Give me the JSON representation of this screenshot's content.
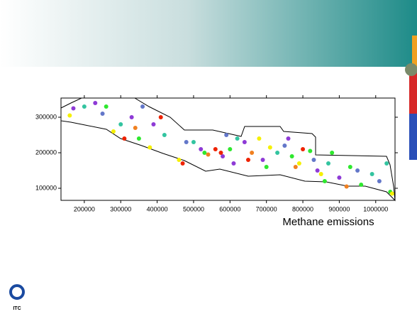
{
  "chart_data": {
    "type": "scatter",
    "caption": "Methane emissions",
    "logo_text": "ITC",
    "xlim": [
      136000,
      1053000
    ],
    "ylim": [
      66000,
      354000
    ],
    "xticks": [
      200000,
      300000,
      400000,
      500000,
      600000,
      700000,
      800000,
      900000,
      1000000
    ],
    "yticks": [
      100000,
      200000,
      300000
    ],
    "series": [
      {
        "color": "#8e3ad6",
        "x": [
          170000,
          230000,
          330000,
          390000,
          520000,
          580000,
          640000,
          690000,
          760000,
          840000,
          900000,
          610000
        ],
        "y": [
          325000,
          340000,
          300000,
          280000,
          210000,
          190000,
          230000,
          180000,
          240000,
          150000,
          130000,
          170000
        ]
      },
      {
        "color": "#2ee82e",
        "x": [
          260000,
          350000,
          530000,
          600000,
          700000,
          770000,
          820000,
          860000,
          930000,
          960000,
          1040000,
          880000
        ],
        "y": [
          330000,
          240000,
          200000,
          210000,
          160000,
          190000,
          205000,
          120000,
          160000,
          110000,
          90000,
          200000
        ]
      },
      {
        "color": "#f5f000",
        "x": [
          160000,
          280000,
          380000,
          460000,
          710000,
          790000,
          850000,
          1045000,
          680000
        ],
        "y": [
          305000,
          260000,
          215000,
          180000,
          215000,
          170000,
          140000,
          85000,
          240000
        ]
      },
      {
        "color": "#ee2200",
        "x": [
          310000,
          410000,
          560000,
          575000,
          470000,
          650000,
          800000
        ],
        "y": [
          240000,
          300000,
          210000,
          200000,
          170000,
          180000,
          210000
        ]
      },
      {
        "color": "#33c4a0",
        "x": [
          200000,
          300000,
          420000,
          500000,
          620000,
          730000,
          870000,
          990000,
          1030000
        ],
        "y": [
          330000,
          280000,
          250000,
          230000,
          240000,
          200000,
          170000,
          140000,
          170000
        ]
      },
      {
        "color": "#6377c9",
        "x": [
          250000,
          360000,
          480000,
          590000,
          750000,
          830000,
          950000,
          1010000
        ],
        "y": [
          310000,
          330000,
          230000,
          250000,
          220000,
          180000,
          150000,
          120000
        ]
      },
      {
        "color": "#f08020",
        "x": [
          340000,
          540000,
          660000,
          780000,
          920000
        ],
        "y": [
          270000,
          195000,
          200000,
          160000,
          105000
        ]
      }
    ]
  }
}
